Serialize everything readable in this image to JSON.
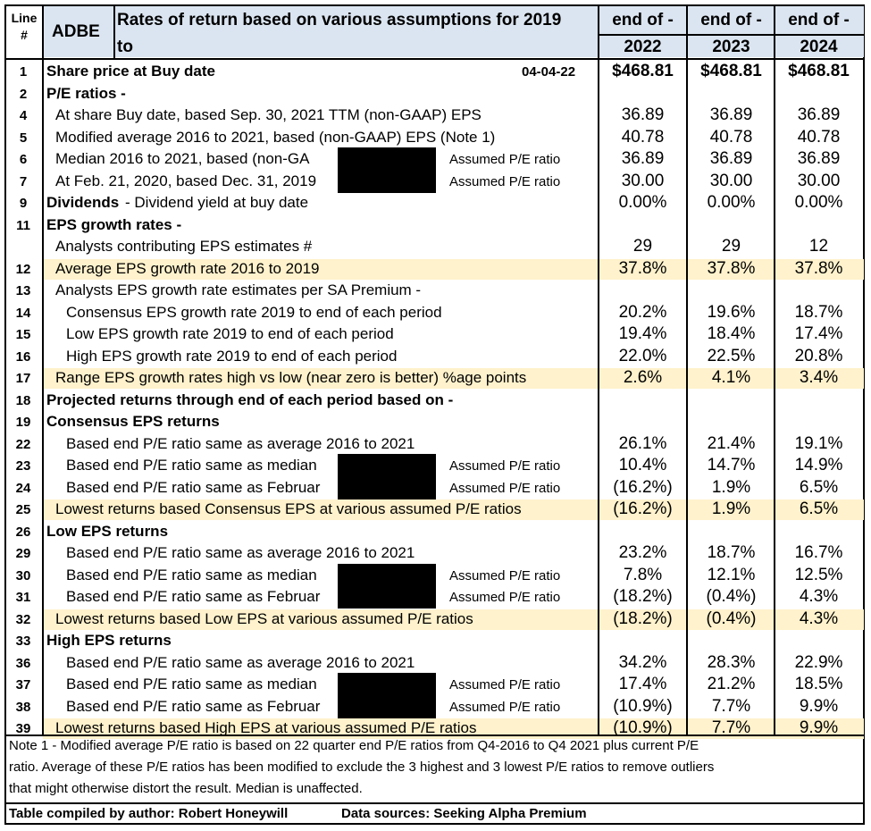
{
  "header": {
    "line_label": "Line\n#",
    "ticker": "ADBE",
    "title_line1": "Rates of return based on various assumptions for 2019",
    "title_line2": "to",
    "col_top": [
      "end of -",
      "end of -",
      "end of -"
    ],
    "col_years": [
      "2022",
      "2023",
      "2024"
    ]
  },
  "rows": [
    {
      "line": "1",
      "label": "Share price at Buy date",
      "bold": true,
      "date": "04-04-22",
      "values": [
        "$468.81",
        "$468.81",
        "$468.81"
      ],
      "bold_values": true
    },
    {
      "line": "2",
      "label": "P/E ratios -",
      "bold": true,
      "values": [
        "",
        "",
        ""
      ]
    },
    {
      "line": "4",
      "label": "At share Buy date, based Sep. 30, 2021 TTM (non-GAAP) EPS",
      "indent": 1,
      "values": [
        "36.89",
        "36.89",
        "36.89"
      ]
    },
    {
      "line": "5",
      "label": "Modified average 2016 to 2021, based (non-GAAP) EPS  (Note 1)",
      "indent": 1,
      "values": [
        "40.78",
        "40.78",
        "40.78"
      ]
    },
    {
      "line": "6",
      "label": "Median 2016 to 2021, based (non-GA",
      "indent": 1,
      "redacted": true,
      "assumed": "Assumed P/E ratio",
      "values": [
        "36.89",
        "36.89",
        "36.89"
      ]
    },
    {
      "line": "7",
      "label": "At Feb. 21, 2020, based Dec. 31, 2019",
      "indent": 1,
      "redacted": true,
      "assumed": "Assumed P/E ratio",
      "values": [
        "30.00",
        "30.00",
        "30.00"
      ]
    },
    {
      "line": "9",
      "label": "Dividends",
      "bold": true,
      "label_suffix": " -  Dividend yield at buy date",
      "values": [
        "0.00%",
        "0.00%",
        "0.00%"
      ]
    },
    {
      "line": "11",
      "label": "EPS growth rates -",
      "bold": true,
      "values": [
        "",
        "",
        ""
      ]
    },
    {
      "line": "",
      "label": "Analysts contributing EPS estimates #",
      "indent": 1,
      "values": [
        "29",
        "29",
        "12"
      ]
    },
    {
      "line": "12",
      "label": "Average EPS growth rate 2016 to 2019",
      "indent": 1,
      "highlight": true,
      "values": [
        "37.8%",
        "37.8%",
        "37.8%"
      ]
    },
    {
      "line": "13",
      "label": "Analysts EPS growth rate estimates per SA Premium -",
      "indent": 1,
      "values": [
        "",
        "",
        ""
      ]
    },
    {
      "line": "14",
      "label": "Consensus EPS growth rate 2019 to end of each period",
      "indent": 2,
      "values": [
        "20.2%",
        "19.6%",
        "18.7%"
      ]
    },
    {
      "line": "15",
      "label": "Low EPS growth rate 2019 to end of each period",
      "indent": 2,
      "values": [
        "19.4%",
        "18.4%",
        "17.4%"
      ]
    },
    {
      "line": "16",
      "label": "High EPS growth rate 2019 to end of each period",
      "indent": 2,
      "values": [
        "22.0%",
        "22.5%",
        "20.8%"
      ]
    },
    {
      "line": "17",
      "label": "Range EPS growth rates high vs low (near zero is better) %age points",
      "indent": 1,
      "highlight": true,
      "values": [
        "2.6%",
        "4.1%",
        "3.4%"
      ]
    },
    {
      "line": "18",
      "label": "Projected returns through end of each period based on -",
      "bold": true,
      "values": [
        "",
        "",
        ""
      ]
    },
    {
      "line": "19",
      "label": "Consensus EPS returns",
      "bold": true,
      "values": [
        "",
        "",
        ""
      ]
    },
    {
      "line": "22",
      "label": "Based end P/E ratio same as average 2016 to 2021",
      "indent": 2,
      "values": [
        "26.1%",
        "21.4%",
        "19.1%"
      ]
    },
    {
      "line": "23",
      "label": "Based end P/E ratio same as median",
      "indent": 2,
      "redacted": true,
      "assumed": "Assumed P/E ratio",
      "values": [
        "10.4%",
        "14.7%",
        "14.9%"
      ]
    },
    {
      "line": "24",
      "label": "Based end P/E ratio same as Februar",
      "indent": 2,
      "redacted": true,
      "assumed": "Assumed P/E ratio",
      "values": [
        "(16.2%)",
        "1.9%",
        "6.5%"
      ]
    },
    {
      "line": "25",
      "label": "Lowest returns based Consensus EPS at various assumed P/E ratios",
      "indent": 1,
      "highlight": true,
      "values": [
        "(16.2%)",
        "1.9%",
        "6.5%"
      ]
    },
    {
      "line": "26",
      "label": "Low EPS returns",
      "bold": true,
      "values": [
        "",
        "",
        ""
      ]
    },
    {
      "line": "29",
      "label": "Based end P/E ratio same as average 2016 to 2021",
      "indent": 2,
      "values": [
        "23.2%",
        "18.7%",
        "16.7%"
      ]
    },
    {
      "line": "30",
      "label": "Based end P/E ratio same as median",
      "indent": 2,
      "redacted": true,
      "assumed": "Assumed P/E ratio",
      "values": [
        "7.8%",
        "12.1%",
        "12.5%"
      ]
    },
    {
      "line": "31",
      "label": "Based end P/E ratio same as Februar",
      "indent": 2,
      "redacted": true,
      "assumed": "Assumed P/E ratio",
      "values": [
        "(18.2%)",
        "(0.4%)",
        "4.3%"
      ]
    },
    {
      "line": "32",
      "label": "Lowest returns based Low EPS at various assumed P/E ratios",
      "indent": 1,
      "highlight": true,
      "values": [
        "(18.2%)",
        "(0.4%)",
        "4.3%"
      ]
    },
    {
      "line": "33",
      "label": "High  EPS returns",
      "bold": true,
      "values": [
        "",
        "",
        ""
      ]
    },
    {
      "line": "36",
      "label": "Based end P/E ratio same as average 2016 to 2021",
      "indent": 2,
      "values": [
        "34.2%",
        "28.3%",
        "22.9%"
      ]
    },
    {
      "line": "37",
      "label": "Based end P/E ratio same as median",
      "indent": 2,
      "redacted": true,
      "assumed": "Assumed P/E ratio",
      "values": [
        "17.4%",
        "21.2%",
        "18.5%"
      ]
    },
    {
      "line": "38",
      "label": "Based end P/E ratio same as Februar",
      "indent": 2,
      "redacted": true,
      "assumed": "Assumed P/E ratio",
      "values": [
        "(10.9%)",
        "7.7%",
        "9.9%"
      ]
    },
    {
      "line": "39",
      "label": "Lowest returns based High EPS at various assumed P/E ratios",
      "indent": 1,
      "highlight": true,
      "values": [
        "(10.9%)",
        "7.7%",
        "9.9%"
      ]
    }
  ],
  "note": [
    "Note 1 - Modified average P/E ratio is based on 22 quarter end  P/E ratios from Q4-2016 to Q4 2021 plus current P/E",
    "ratio. Average of these P/E ratios has been modified to exclude the 3 highest and 3 lowest P/E ratios to remove outliers",
    "that might otherwise distort the result. Median is unaffected."
  ],
  "footer": {
    "compiled": "Table compiled by author: Robert Honeywill",
    "sources": "Data sources: Seeking Alpha Premium"
  },
  "colors": {
    "header_fill": "#dbe5f1",
    "highlight_fill": "#fff2cc",
    "redaction": "#000000"
  }
}
